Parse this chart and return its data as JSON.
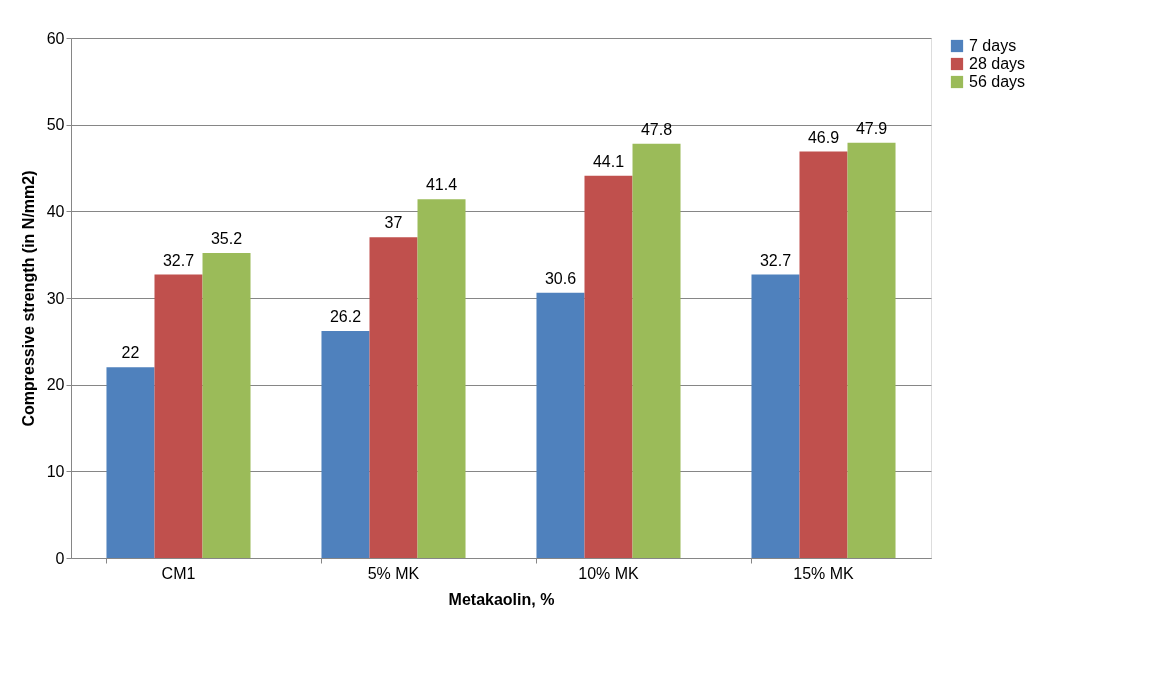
{
  "chart_data": {
    "type": "bar",
    "xlabel": "Metakaolin, %",
    "ylabel": "Compressive strength (in N/mm2)",
    "categories": [
      "CM1",
      "5% MK",
      "10% MK",
      "15% MK"
    ],
    "series": [
      {
        "name": "7 days",
        "color": "#4f81bd",
        "values": [
          22,
          26.2,
          30.6,
          32.7
        ]
      },
      {
        "name": "28 days",
        "color": "#c0504d",
        "values": [
          32.7,
          37,
          44.1,
          46.9
        ]
      },
      {
        "name": "56 days",
        "color": "#9bbb59",
        "values": [
          35.2,
          41.4,
          47.8,
          47.9
        ]
      }
    ],
    "ylim": [
      0,
      60
    ],
    "yticks": [
      0,
      10,
      20,
      30,
      40,
      50,
      60
    ],
    "grid": "y",
    "legend": "right",
    "data_labels": true
  }
}
